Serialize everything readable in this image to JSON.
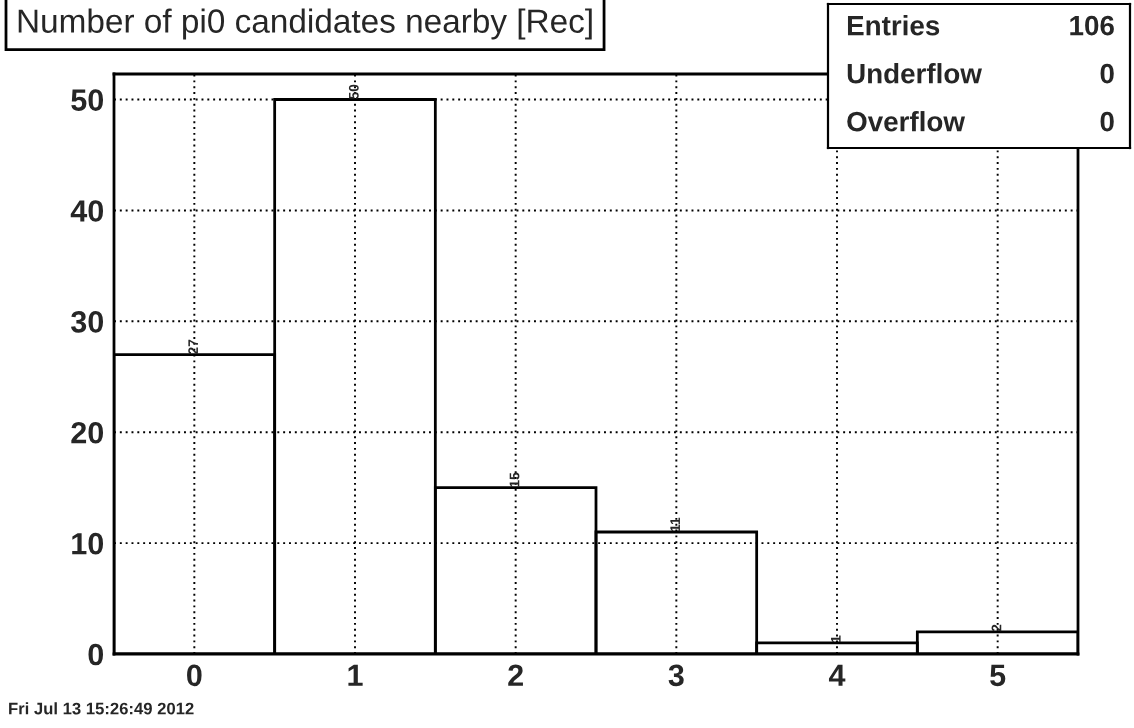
{
  "chart_data": {
    "type": "histogram",
    "title": "Number of pi0 candidates nearby [Rec]",
    "bins": [
      -0.5,
      0.5,
      1.5,
      2.5,
      3.5,
      4.5,
      5.5
    ],
    "values": [
      27,
      50,
      15,
      11,
      1,
      2
    ],
    "color": "#000000",
    "xlim": [
      -0.5,
      5.5
    ],
    "xticks": [
      0,
      1,
      2,
      3,
      4,
      5
    ],
    "ylim": [
      0,
      52.3
    ],
    "yticks": [
      0,
      10,
      20,
      30,
      40,
      50
    ],
    "grid": true,
    "data_labels": true,
    "annotations": [
      "Entries 106",
      "Underflow 0",
      "Overflow 0",
      "Fri Jul 13 15:26:49 2012"
    ]
  }
}
